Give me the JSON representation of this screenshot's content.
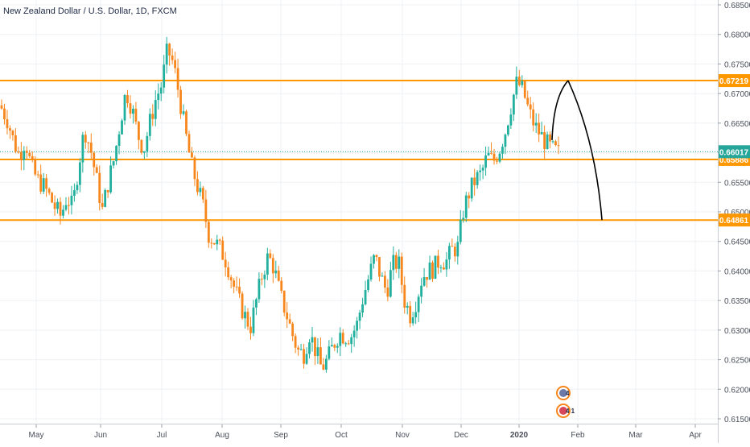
{
  "chart_data": {
    "type": "candlestick",
    "title": "New Zealand Dollar / U.S. Dollar, 1D, FXCM",
    "colors": {
      "up": "#21b09d",
      "down": "#f7861c",
      "level_line": "#ff9800",
      "level_label_bg": "#ff9800",
      "current_price_label_bg": "#26a69a",
      "current_price_line": "#26a69a",
      "projection_line": "#000000",
      "grid": "#eef0f4",
      "axis_text": "#4a4f5a"
    },
    "y_axis": {
      "min": 0.615,
      "max": 0.685,
      "ticks": [
        "0.68500",
        "0.68000",
        "0.67500",
        "0.67000",
        "0.66500",
        "0.66000",
        "0.65500",
        "0.65000",
        "0.64500",
        "0.64000",
        "0.63500",
        "0.63000",
        "0.62500",
        "0.62000",
        "0.61500"
      ]
    },
    "x_axis": {
      "labels": [
        "May",
        "Jun",
        "Jul",
        "Aug",
        "Sep",
        "Oct",
        "Nov",
        "Dec",
        "2020",
        "Feb",
        "Mar",
        "Apr"
      ]
    },
    "horizontal_levels": [
      {
        "label": "0.67219",
        "value": 0.67219
      },
      {
        "label": "0.65886",
        "value": 0.65886
      },
      {
        "label": "0.64861",
        "value": 0.64861
      }
    ],
    "current_price": {
      "label": "0.66017",
      "value": 0.66017
    },
    "candle_path": [
      [
        0.668,
        0.667
      ],
      [
        0.666,
        0.665
      ],
      [
        0.663,
        0.661
      ],
      [
        0.66,
        0.659
      ],
      [
        0.662,
        0.6625
      ],
      [
        0.658,
        0.657
      ],
      [
        0.656,
        0.655
      ],
      [
        0.655,
        0.654
      ],
      [
        0.653,
        0.6525
      ],
      [
        0.651,
        0.6505
      ],
      [
        0.649,
        0.6495
      ],
      [
        0.652,
        0.653
      ],
      [
        0.651,
        0.6505
      ],
      [
        0.657,
        0.659
      ],
      [
        0.663,
        0.665
      ],
      [
        0.661,
        0.6605
      ],
      [
        0.656,
        0.655
      ],
      [
        0.651,
        0.6495
      ],
      [
        0.654,
        0.656
      ],
      [
        0.658,
        0.66
      ],
      [
        0.664,
        0.666
      ],
      [
        0.67,
        0.671
      ],
      [
        0.668,
        0.667
      ],
      [
        0.664,
        0.662
      ],
      [
        0.661,
        0.66
      ],
      [
        0.664,
        0.666
      ],
      [
        0.668,
        0.67
      ],
      [
        0.671,
        0.672
      ],
      [
        0.677,
        0.678
      ],
      [
        0.676,
        0.674
      ],
      [
        0.671,
        0.668
      ],
      [
        0.665,
        0.662
      ],
      [
        0.659,
        0.657
      ],
      [
        0.655,
        0.654
      ],
      [
        0.652,
        0.65
      ],
      [
        0.647,
        0.645
      ],
      [
        0.646,
        0.644
      ],
      [
        0.644,
        0.643
      ],
      [
        0.642,
        0.641
      ],
      [
        0.639,
        0.637
      ],
      [
        0.636,
        0.634
      ],
      [
        0.633,
        0.632
      ],
      [
        0.63,
        0.631
      ],
      [
        0.634,
        0.636
      ],
      [
        0.638,
        0.641
      ],
      [
        0.642,
        0.643
      ],
      [
        0.641,
        0.64
      ],
      [
        0.637,
        0.635
      ],
      [
        0.634,
        0.632
      ],
      [
        0.63,
        0.629
      ],
      [
        0.627,
        0.626
      ],
      [
        0.625,
        0.627
      ],
      [
        0.629,
        0.63
      ],
      [
        0.627,
        0.626
      ],
      [
        0.624,
        0.623
      ],
      [
        0.624,
        0.626
      ],
      [
        0.627,
        0.628
      ],
      [
        0.63,
        0.629
      ],
      [
        0.629,
        0.629
      ],
      [
        0.628,
        0.63
      ],
      [
        0.63,
        0.632
      ],
      [
        0.634,
        0.637
      ],
      [
        0.638,
        0.64
      ],
      [
        0.642,
        0.643
      ],
      [
        0.64,
        0.638
      ],
      [
        0.636,
        0.637
      ],
      [
        0.64,
        0.642
      ],
      [
        0.643,
        0.64
      ],
      [
        0.636,
        0.634
      ],
      [
        0.633,
        0.632
      ],
      [
        0.634,
        0.636
      ],
      [
        0.638,
        0.64
      ],
      [
        0.641,
        0.639
      ],
      [
        0.64,
        0.641
      ],
      [
        0.642,
        0.642
      ],
      [
        0.641,
        0.642
      ],
      [
        0.643,
        0.644
      ],
      [
        0.643,
        0.645
      ],
      [
        0.649,
        0.652
      ],
      [
        0.653,
        0.654
      ],
      [
        0.656,
        0.655
      ],
      [
        0.656,
        0.657
      ],
      [
        0.659,
        0.66
      ],
      [
        0.659,
        0.658
      ],
      [
        0.66,
        0.661
      ],
      [
        0.663,
        0.664
      ],
      [
        0.667,
        0.669
      ],
      [
        0.671,
        0.673
      ],
      [
        0.672,
        0.669
      ],
      [
        0.668,
        0.666
      ],
      [
        0.665,
        0.664
      ],
      [
        0.664,
        0.662
      ],
      [
        0.662,
        0.661
      ],
      [
        0.661,
        0.66
      ],
      [
        0.66,
        0.66
      ]
    ]
  },
  "footer_badges": [
    {
      "label": "4"
    },
    {
      "label": "4 1"
    }
  ]
}
